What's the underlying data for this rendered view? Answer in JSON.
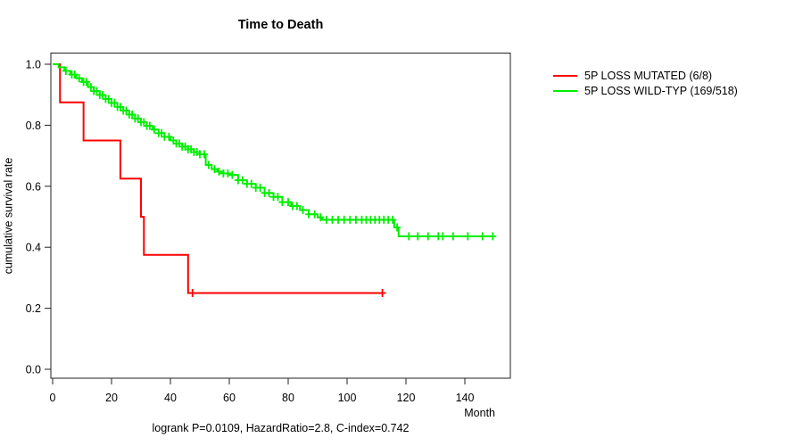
{
  "chart_data": {
    "type": "line",
    "subtype": "kaplan-meier-step",
    "title": "Time to Death",
    "xlabel": "Month",
    "ylabel": "cumulative survival rate",
    "footer": "logrank P=0.0109, HazardRatio=2.8, C-index=0.742",
    "xlim": [
      0,
      155
    ],
    "ylim": [
      0.0,
      1.0
    ],
    "xticks": [
      0,
      20,
      40,
      60,
      80,
      100,
      120,
      140
    ],
    "yticks": [
      "0.0",
      "0.2",
      "0.4",
      "0.6",
      "0.8",
      "1.0"
    ],
    "grid": false,
    "legend_position": "right-outside",
    "series": [
      {
        "name": "5P LOSS MUTATED (6/8)",
        "color": "#ff0000",
        "start": [
          0,
          1.0
        ],
        "drops": [
          [
            2.5,
            0.875
          ],
          [
            10.5,
            0.75
          ],
          [
            23,
            0.625
          ],
          [
            30,
            0.5
          ],
          [
            31,
            0.375
          ],
          [
            46,
            0.25
          ]
        ],
        "end_month": 112,
        "censor_months": [
          47.5,
          112
        ]
      },
      {
        "name": "5P LOSS WILD-TYP (169/518)",
        "color": "#00ee00",
        "start": [
          0,
          1.0
        ],
        "drops": [
          [
            2,
            0.99
          ],
          [
            4,
            0.978
          ],
          [
            6,
            0.966
          ],
          [
            8,
            0.954
          ],
          [
            10,
            0.942
          ],
          [
            12,
            0.925
          ],
          [
            14,
            0.912
          ],
          [
            16,
            0.899
          ],
          [
            18,
            0.886
          ],
          [
            20,
            0.873
          ],
          [
            22,
            0.86
          ],
          [
            24,
            0.848
          ],
          [
            26,
            0.835
          ],
          [
            28,
            0.822
          ],
          [
            30,
            0.81
          ],
          [
            32,
            0.798
          ],
          [
            34,
            0.786
          ],
          [
            36,
            0.774
          ],
          [
            38,
            0.762
          ],
          [
            40,
            0.75
          ],
          [
            42,
            0.74
          ],
          [
            44,
            0.73
          ],
          [
            46,
            0.721
          ],
          [
            48,
            0.712
          ],
          [
            50,
            0.705
          ],
          [
            52,
            0.67
          ],
          [
            54,
            0.656
          ],
          [
            56,
            0.648
          ],
          [
            58,
            0.642
          ],
          [
            60,
            0.637
          ],
          [
            63,
            0.62
          ],
          [
            66,
            0.608
          ],
          [
            69,
            0.595
          ],
          [
            72,
            0.578
          ],
          [
            75,
            0.565
          ],
          [
            78,
            0.548
          ],
          [
            81,
            0.535
          ],
          [
            84,
            0.522
          ],
          [
            87,
            0.508
          ],
          [
            90,
            0.498
          ],
          [
            91.5,
            0.49
          ],
          [
            116,
            0.465
          ],
          [
            117.5,
            0.436
          ]
        ],
        "end_month": 149.5,
        "censor_months": [
          4.5,
          6.5,
          7.5,
          9,
          10.5,
          11.5,
          13,
          14,
          15,
          16,
          17,
          18,
          19,
          20,
          21,
          22,
          23,
          24,
          25,
          26,
          27,
          28,
          29,
          30,
          31,
          32,
          33,
          34.5,
          36,
          37,
          38,
          39.5,
          41,
          42,
          43,
          44,
          45,
          46,
          47,
          48,
          49,
          50,
          51.5,
          53,
          55,
          56.5,
          58,
          59.5,
          61,
          63,
          64.5,
          66,
          67.5,
          69,
          70.5,
          72,
          73.5,
          75,
          76.5,
          78,
          80,
          81.5,
          83,
          85,
          87,
          89,
          91,
          93,
          95,
          97,
          99,
          101,
          103,
          105,
          106.5,
          108,
          109.5,
          111,
          112.5,
          114,
          115.5,
          117,
          121,
          124,
          127.5,
          131,
          132.5,
          136,
          141,
          146,
          149.5
        ]
      }
    ]
  }
}
